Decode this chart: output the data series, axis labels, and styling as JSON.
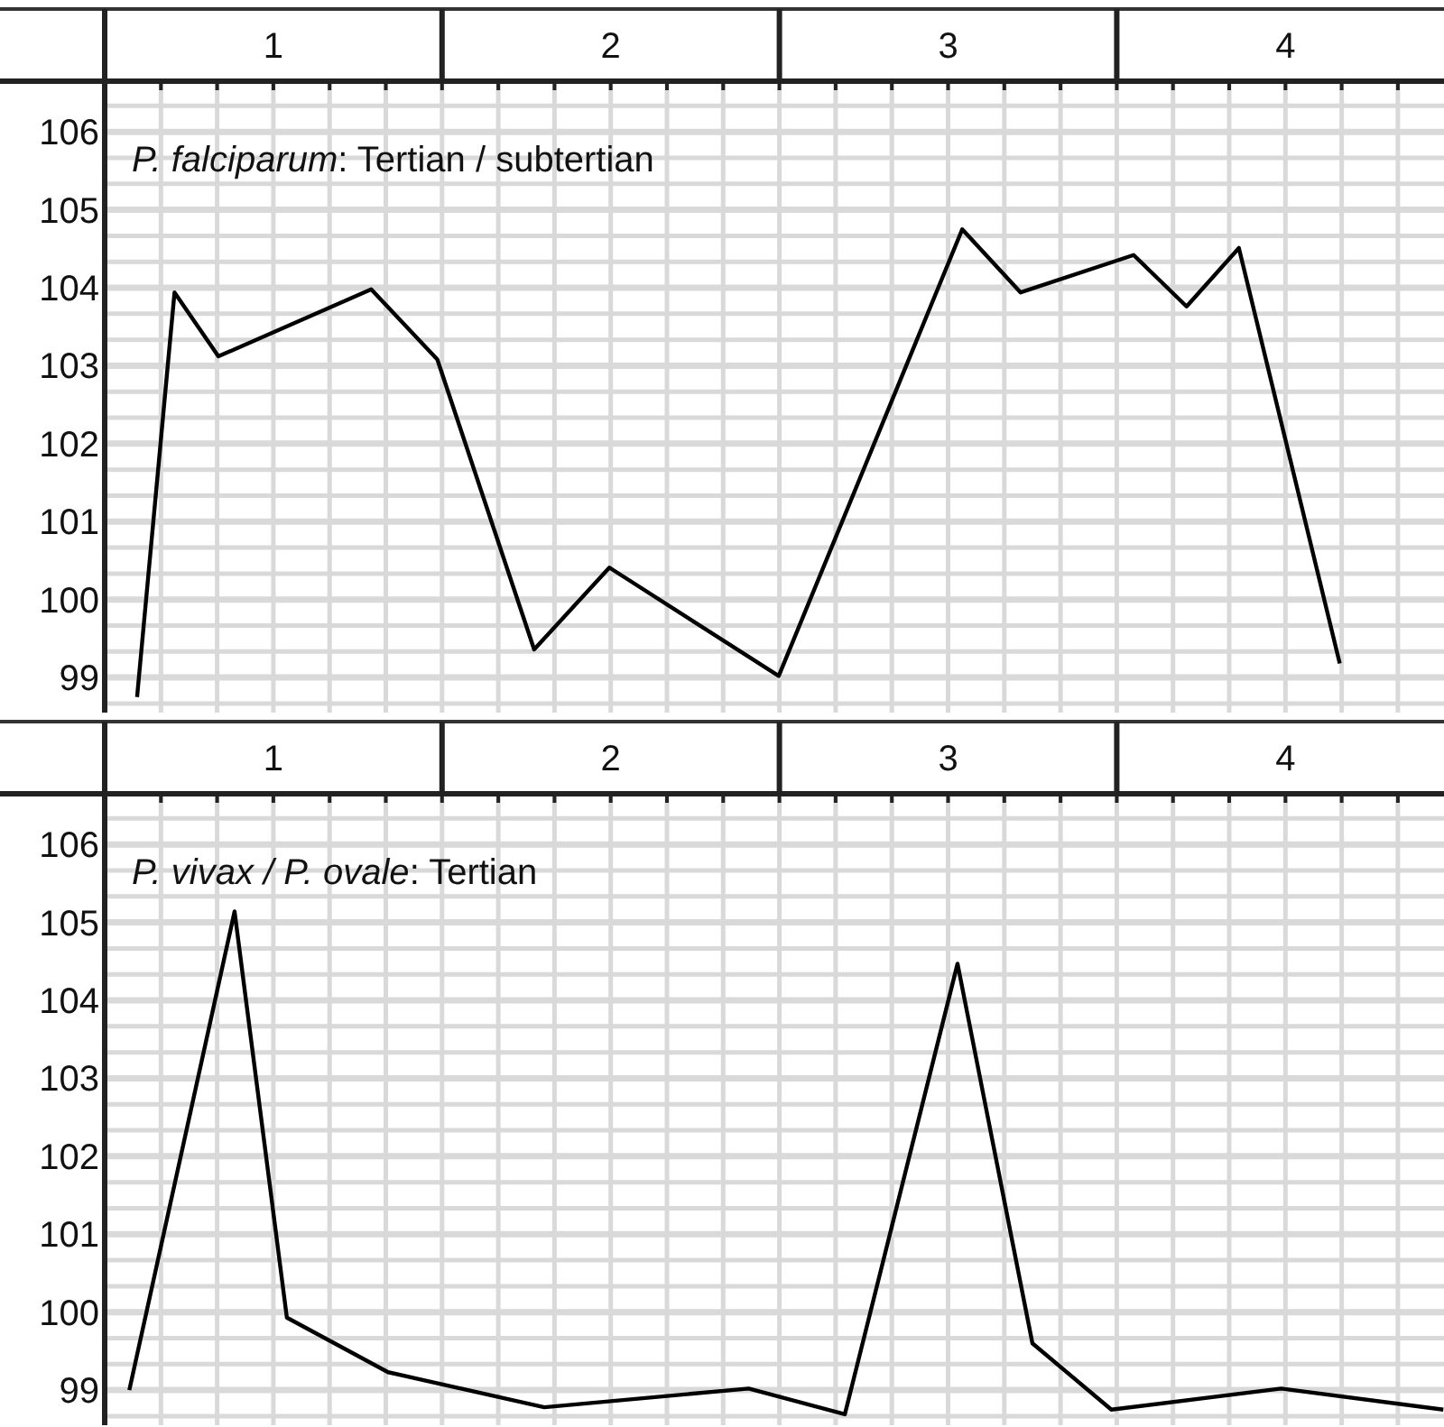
{
  "chart_data": [
    {
      "type": "line",
      "title": "P. falciparum: Tertian / subtertian",
      "x": [
        0.096,
        0.207,
        0.337,
        0.79,
        0.986,
        1.273,
        1.496,
        1.998,
        2.542,
        2.715,
        3.05,
        3.207,
        3.362,
        3.661
      ],
      "series": [
        {
          "color": "#000000",
          "values": [
            98.75,
            103.94,
            103.12,
            103.98,
            103.08,
            99.36,
            100.41,
            99.02,
            104.75,
            103.94,
            104.42,
            103.76,
            104.51,
            99.18
          ]
        }
      ],
      "xlim": [
        0,
        3.97
      ],
      "ylim": [
        98.55,
        106.65
      ],
      "xticks": [
        {
          "value": 0,
          "label": null
        },
        {
          "value": 0.1667,
          "label": null
        },
        {
          "value": 0.3333,
          "label": null
        },
        {
          "value": 0.5,
          "label": "1"
        },
        {
          "value": 0.6667,
          "label": null
        },
        {
          "value": 0.8333,
          "label": null
        },
        {
          "value": 1,
          "label": null
        },
        {
          "value": 1.1667,
          "label": null
        },
        {
          "value": 1.3333,
          "label": null
        },
        {
          "value": 1.5,
          "label": "2"
        },
        {
          "value": 1.6667,
          "label": null
        },
        {
          "value": 1.8333,
          "label": null
        },
        {
          "value": 2,
          "label": null
        },
        {
          "value": 2.1667,
          "label": null
        },
        {
          "value": 2.3333,
          "label": null
        },
        {
          "value": 2.5,
          "label": "3"
        },
        {
          "value": 2.6667,
          "label": null
        },
        {
          "value": 2.8333,
          "label": null
        },
        {
          "value": 3,
          "label": null
        },
        {
          "value": 3.1667,
          "label": null
        },
        {
          "value": 3.3333,
          "label": null
        },
        {
          "value": 3.5,
          "label": "4"
        },
        {
          "value": 3.6667,
          "label": null
        },
        {
          "value": 3.8333,
          "label": null
        }
      ],
      "yticks": [
        {
          "value": 98.6667,
          "label": null
        },
        99,
        {
          "value": 99.3333,
          "label": null
        },
        {
          "value": 99.6667,
          "label": null
        },
        100,
        {
          "value": 100.3333,
          "label": null
        },
        {
          "value": 100.6667,
          "label": null
        },
        101,
        {
          "value": 101.3333,
          "label": null
        },
        {
          "value": 101.6667,
          "label": null
        },
        102,
        {
          "value": 102.3333,
          "label": null
        },
        {
          "value": 102.6667,
          "label": null
        },
        103,
        {
          "value": 103.3333,
          "label": null
        },
        {
          "value": 103.6667,
          "label": null
        },
        104,
        {
          "value": 104.3333,
          "label": null
        },
        {
          "value": 104.6667,
          "label": null
        },
        105,
        {
          "value": 105.3333,
          "label": null
        },
        {
          "value": 105.6667,
          "label": null
        },
        106,
        {
          "value": 106.3333,
          "label": null
        }
      ],
      "grid": true
    },
    {
      "type": "line",
      "title": "P. vivax / P. ovale: Tertian",
      "x": [
        0.073,
        0.385,
        0.54,
        0.84,
        1.303,
        1.909,
        2.194,
        2.528,
        2.75,
        2.984,
        3.487,
        3.968
      ],
      "series": [
        {
          "color": "#000000",
          "values": [
            99.0,
            105.14,
            99.93,
            99.23,
            98.78,
            99.02,
            98.69,
            104.47,
            99.6,
            98.75,
            99.02,
            98.75
          ]
        }
      ],
      "xlim": [
        0,
        3.97
      ],
      "ylim": [
        98.55,
        106.65
      ],
      "xticks": [
        {
          "value": 0,
          "label": null
        },
        {
          "value": 0.1667,
          "label": null
        },
        {
          "value": 0.3333,
          "label": null
        },
        {
          "value": 0.5,
          "label": "1"
        },
        {
          "value": 0.6667,
          "label": null
        },
        {
          "value": 0.8333,
          "label": null
        },
        {
          "value": 1,
          "label": null
        },
        {
          "value": 1.1667,
          "label": null
        },
        {
          "value": 1.3333,
          "label": null
        },
        {
          "value": 1.5,
          "label": "2"
        },
        {
          "value": 1.6667,
          "label": null
        },
        {
          "value": 1.8333,
          "label": null
        },
        {
          "value": 2,
          "label": null
        },
        {
          "value": 2.1667,
          "label": null
        },
        {
          "value": 2.3333,
          "label": null
        },
        {
          "value": 2.5,
          "label": "3"
        },
        {
          "value": 2.6667,
          "label": null
        },
        {
          "value": 2.8333,
          "label": null
        },
        {
          "value": 3,
          "label": null
        },
        {
          "value": 3.1667,
          "label": null
        },
        {
          "value": 3.3333,
          "label": null
        },
        {
          "value": 3.5,
          "label": "4"
        },
        {
          "value": 3.6667,
          "label": null
        },
        {
          "value": 3.8333,
          "label": null
        }
      ],
      "yticks": [
        {
          "value": 98.6667,
          "label": null
        },
        99,
        {
          "value": 99.3333,
          "label": null
        },
        {
          "value": 99.6667,
          "label": null
        },
        100,
        {
          "value": 100.3333,
          "label": null
        },
        {
          "value": 100.6667,
          "label": null
        },
        101,
        {
          "value": 101.3333,
          "label": null
        },
        {
          "value": 101.6667,
          "label": null
        },
        102,
        {
          "value": 102.3333,
          "label": null
        },
        {
          "value": 102.6667,
          "label": null
        },
        103,
        {
          "value": 103.3333,
          "label": null
        },
        {
          "value": 103.6667,
          "label": null
        },
        104,
        {
          "value": 104.3333,
          "label": null
        },
        {
          "value": 104.6667,
          "label": null
        },
        105,
        {
          "value": 105.3333,
          "label": null
        },
        {
          "value": 105.6667,
          "label": null
        },
        106,
        {
          "value": 106.3333,
          "label": null
        }
      ],
      "grid": true
    }
  ]
}
